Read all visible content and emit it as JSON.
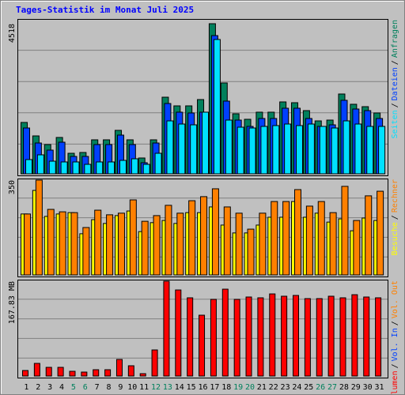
{
  "title": "Tages-Statistik im Monat Juli 2025",
  "legend_separator": "/",
  "chart_data": [
    {
      "type": "bar",
      "ylim": [
        0,
        4518
      ],
      "yticks": [
        4518
      ],
      "grid_divisions": 5,
      "series": [
        {
          "name": "Anfragen",
          "color": "#00805c",
          "values": [
            1546,
            1141,
            880,
            1094,
            618,
            642,
            1023,
            1023,
            1308,
            1023,
            476,
            1023,
            2306,
            2045,
            2045,
            2235,
            4518,
            2735,
            1807,
            1641,
            1855,
            1855,
            2164,
            2140,
            1902,
            1593,
            1617,
            2402,
            2093,
            2021,
            1831
          ]
        },
        {
          "name": "Dateien",
          "color": "#0040ff",
          "values": [
            1379,
            927,
            713,
            951,
            523,
            523,
            880,
            880,
            1165,
            880,
            333,
            927,
            2116,
            1855,
            1831,
            1855,
            4160,
            2188,
            1617,
            1427,
            1665,
            1665,
            1974,
            1974,
            1665,
            1427,
            1474,
            2212,
            1950,
            1902,
            1665
          ]
        },
        {
          "name": "Seiten",
          "color": "#00e0ff",
          "values": [
            428,
            571,
            380,
            357,
            357,
            285,
            357,
            357,
            404,
            452,
            285,
            618,
            1593,
            1498,
            1474,
            1855,
            4043,
            1617,
            1403,
            1379,
            1427,
            1451,
            1498,
            1451,
            1498,
            1427,
            1379,
            1593,
            1498,
            1427,
            1427
          ]
        }
      ],
      "legend_order": [
        2,
        1,
        0
      ]
    },
    {
      "type": "bar",
      "ylim": [
        0,
        350
      ],
      "yticks": [
        350
      ],
      "grid_divisions": 5,
      "series": [
        {
          "name": "Besuche",
          "color": "#ffff00",
          "values": [
            225,
            312,
            216,
            225,
            230,
            152,
            204,
            190,
            219,
            236,
            160,
            193,
            201,
            190,
            230,
            230,
            251,
            184,
            155,
            155,
            184,
            213,
            213,
            271,
            213,
            228,
            195,
            207,
            163,
            210,
            201
          ]
        },
        {
          "name": "Rechner",
          "color": "#ff8000",
          "values": [
            225,
            350,
            242,
            233,
            230,
            175,
            239,
            222,
            228,
            277,
            198,
            219,
            257,
            228,
            274,
            289,
            318,
            251,
            228,
            169,
            228,
            271,
            271,
            315,
            254,
            271,
            230,
            327,
            201,
            292,
            309
          ]
        }
      ],
      "legend_order": [
        0,
        1
      ]
    },
    {
      "type": "bar",
      "ylim": [
        0,
        167.83
      ],
      "yticks": [
        {
          "value": 167.83,
          "label": "167.83 MB"
        }
      ],
      "grid_divisions": 5,
      "categories": [
        "1",
        "2",
        "3",
        "4",
        "5",
        "6",
        "7",
        "8",
        "9",
        "10",
        "11",
        "12",
        "13",
        "14",
        "15",
        "16",
        "17",
        "18",
        "19",
        "20",
        "21",
        "22",
        "23",
        "24",
        "25",
        "26",
        "27",
        "28",
        "29",
        "30",
        "31"
      ],
      "category_colors": [
        "#000000",
        "#000000",
        "#000000",
        "#000000",
        "#00805c",
        "#00805c",
        "#000000",
        "#000000",
        "#000000",
        "#000000",
        "#000000",
        "#00805c",
        "#00805c",
        "#000000",
        "#000000",
        "#000000",
        "#000000",
        "#000000",
        "#00805c",
        "#00805c",
        "#000000",
        "#000000",
        "#000000",
        "#000000",
        "#000000",
        "#00805c",
        "#00805c",
        "#000000",
        "#000000",
        "#000000",
        "#000000"
      ],
      "series": [
        {
          "name": "Volumen",
          "color": "#ff0000",
          "values": [
            9.8,
            22.4,
            15.4,
            15.4,
            8.4,
            7,
            11.2,
            11.2,
            29.4,
            18.2,
            4.2,
            46.2,
            167.83,
            152.4,
            138.5,
            107.7,
            135.7,
            153.8,
            135.7,
            139.9,
            138.5,
            145.4,
            141.3,
            142.7,
            137.1,
            137.1,
            141.3,
            138.5,
            144,
            139.9,
            138.5
          ]
        }
      ],
      "extra_legend": [
        {
          "name": "Vol. In",
          "color": "#0040ff"
        },
        {
          "name": "Vol. Out",
          "color": "#ff8000"
        }
      ]
    }
  ]
}
